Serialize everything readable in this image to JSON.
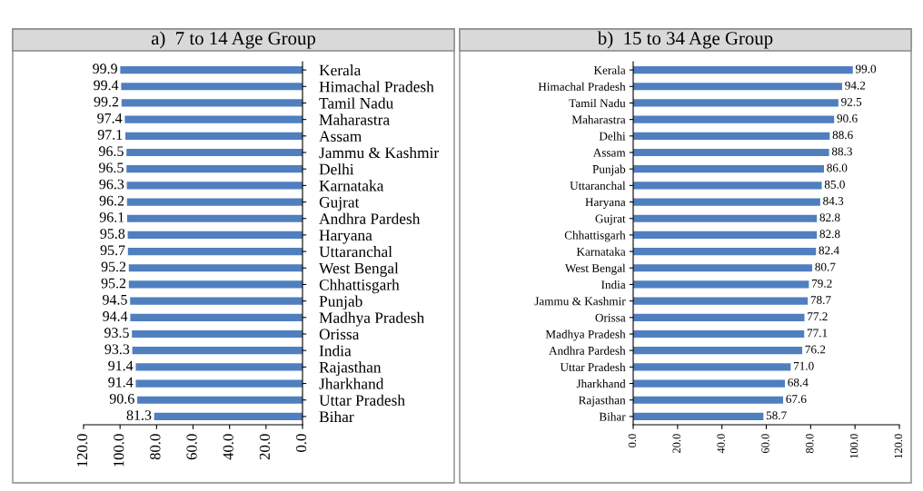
{
  "chart_data": [
    {
      "type": "bar",
      "orientation": "horizontal",
      "title": "a)  7 to 14 Age Group",
      "color": "#4f7fbf",
      "data_labels": true,
      "grid": false,
      "legend": false,
      "categories": [
        "Kerala",
        "Himachal Pradesh",
        "Tamil Nadu",
        "Maharastra",
        "Assam",
        "Jammu & Kashmir",
        "Delhi",
        "Karnataka",
        "Gujrat",
        "Andhra Pardesh",
        "Haryana",
        "Uttaranchal",
        "West Bengal",
        "Chhattisgarh",
        "Punjab",
        "Madhya Pradesh",
        "Orissa",
        "India",
        "Rajasthan",
        "Jharkhand",
        "Uttar Pradesh",
        "Bihar"
      ],
      "values": [
        99.9,
        99.4,
        99.2,
        97.4,
        97.1,
        96.5,
        96.5,
        96.3,
        96.2,
        96.1,
        95.8,
        95.7,
        95.2,
        95.2,
        94.5,
        94.4,
        93.5,
        93.3,
        91.4,
        91.4,
        90.6,
        81.3
      ],
      "xlim": [
        120,
        0
      ],
      "xticks": [
        {
          "value": 120,
          "label": "120.0"
        },
        {
          "value": 100,
          "label": "100.0"
        },
        {
          "value": 80,
          "label": "80.0"
        },
        {
          "value": 60,
          "label": "60.0"
        },
        {
          "value": 40,
          "label": "40.0"
        },
        {
          "value": 20,
          "label": "20.0"
        },
        {
          "value": 0,
          "label": "0.0"
        }
      ]
    },
    {
      "type": "bar",
      "orientation": "horizontal",
      "title": "b)  15 to 34 Age Group",
      "color": "#4f7fbf",
      "grid": false,
      "legend": false,
      "value_labels": [
        "99.0",
        "94.2",
        "92.5",
        "90.6",
        "88.6",
        "88.3",
        "86.0",
        "85.0",
        "84.3",
        "82.8",
        "82.8",
        "82.4",
        "80.7",
        "79.2",
        "78.7",
        "77.2",
        "77.1",
        "76.2",
        "71.0",
        "68.4",
        "67.6",
        "58.7"
      ],
      "categories": [
        "Kerala",
        "Himachal Pradesh",
        "Tamil Nadu",
        "Maharastra",
        "Delhi",
        "Assam",
        "Punjab",
        "Uttaranchal",
        "Haryana",
        "Gujrat",
        "Chhattisgarh",
        "Karnataka",
        "West Bengal",
        "India",
        "Jammu & Kashmir",
        "Orissa",
        "Madhya Pradesh",
        "Andhra Pardesh",
        "Uttar Pradesh",
        "Jharkhand",
        "Rajasthan",
        "Bihar"
      ],
      "values": [
        99.0,
        94.2,
        92.5,
        90.6,
        88.6,
        88.3,
        86.0,
        85.0,
        84.3,
        82.8,
        82.8,
        82.4,
        80.7,
        79.2,
        78.7,
        77.2,
        77.1,
        76.2,
        71.0,
        68.4,
        67.6,
        58.7
      ],
      "xlim": [
        0,
        120
      ],
      "xticks": [
        {
          "value": 0,
          "label": "0.0"
        },
        {
          "value": 20,
          "label": "20.0"
        },
        {
          "value": 40,
          "label": "40.0"
        },
        {
          "value": 60,
          "label": "60.0"
        },
        {
          "value": 80,
          "label": "80.0"
        },
        {
          "value": 100,
          "label": "100.0"
        },
        {
          "value": 120,
          "label": "120.0"
        }
      ]
    }
  ]
}
